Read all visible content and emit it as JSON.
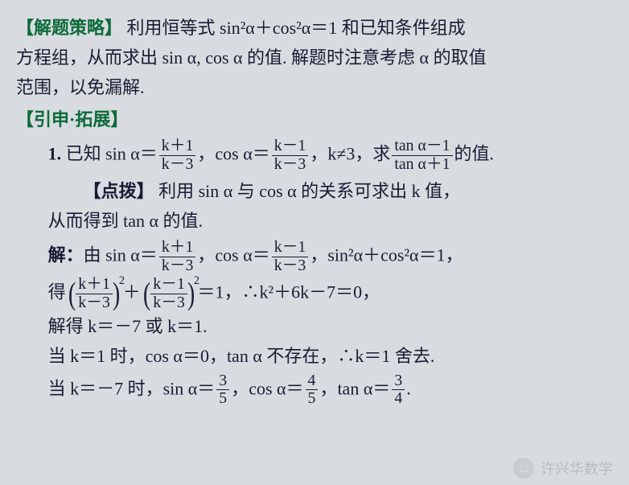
{
  "strategy": {
    "heading": "【解题策略】",
    "body_l1": "利用恒等式 sin²α＋cos²α＝1 和已知条件组成",
    "body_l2": "方程组，从而求出 sin α, cos α 的值. 解题时注意考虑 α 的取值",
    "body_l3": "范围，以免漏解."
  },
  "extension_heading": "【引申·拓展】",
  "problem": {
    "num": "1.",
    "prefix": "已知 sin α＝",
    "frac1_num": "k＋1",
    "frac1_den": "k－3",
    "mid1": "，cos α＝",
    "frac2_num": "k－1",
    "frac2_den": "k－3",
    "mid2": "，k≠3，求",
    "frac3_num": "tan α－1",
    "frac3_den": "tan α＋1",
    "suffix": "的值."
  },
  "hint": {
    "label": "【点拨】",
    "l1": "利用 sin α 与 cos α 的关系可求出 k 值，",
    "l2": "从而得到 tan α 的值."
  },
  "sol": {
    "label": "解：",
    "l1_a": "由 sin α＝",
    "l1_b": "，cos α＝",
    "l1_c": "，sin²α＋cos²α＝1，",
    "l2_a": "得 ",
    "l2_b": " ＋ ",
    "l2_c": "＝1，∴k²＋6k－7＝0，",
    "l3": "解得 k＝－7 或 k＝1.",
    "l4": "当 k＝1 时，cos α＝0，tan α 不存在，∴k＝1 舍去.",
    "l5_a": "当 k＝－7 时，sin α＝",
    "l5_f1n": "3",
    "l5_f1d": "5",
    "l5_b": "，cos α＝",
    "l5_f2n": "4",
    "l5_f2d": "5",
    "l5_c": "，tan α＝",
    "l5_f3n": "3",
    "l5_f3d": "4",
    "l5_d": "."
  },
  "watermark": {
    "icon": "公",
    "text": "许兴华数学"
  },
  "colors": {
    "bg": "#d8dce0",
    "heading": "#0d6b3b",
    "text": "#1a1a33",
    "wm": "#b8bcc0"
  }
}
